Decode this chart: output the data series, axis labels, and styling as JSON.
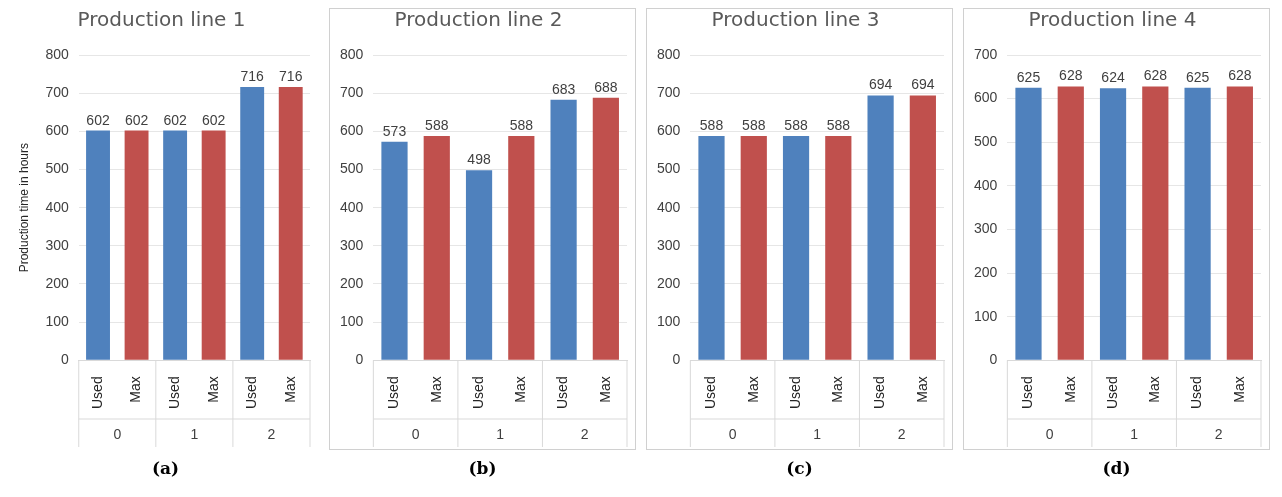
{
  "chart_data": [
    {
      "type": "bar",
      "title": "Production line 1",
      "ylabel": "Production time in hours",
      "categories": [
        "Used",
        "Max",
        "Used",
        "Max",
        "Used",
        "Max"
      ],
      "values": [
        602,
        602,
        602,
        602,
        716,
        716
      ],
      "colors": [
        "#4f81bd",
        "#c0504d",
        "#4f81bd",
        "#c0504d",
        "#4f81bd",
        "#c0504d"
      ],
      "ylim": [
        0,
        800
      ],
      "yticks": [
        0,
        100,
        200,
        300,
        400,
        500,
        600,
        700,
        800
      ],
      "grid": "y",
      "data_labels": true,
      "annotations": [
        "0",
        "1",
        "2",
        "(a)"
      ]
    },
    {
      "type": "bar",
      "title": "Production line 2",
      "categories": [
        "Used",
        "Max",
        "Used",
        "Max",
        "Used",
        "Max"
      ],
      "values": [
        573,
        588,
        498,
        588,
        683,
        688
      ],
      "colors": [
        "#4f81bd",
        "#c0504d",
        "#4f81bd",
        "#c0504d",
        "#4f81bd",
        "#c0504d"
      ],
      "ylim": [
        0,
        800
      ],
      "yticks": [
        0,
        100,
        200,
        300,
        400,
        500,
        600,
        700,
        800
      ],
      "grid": "y",
      "data_labels": true,
      "annotations": [
        "0",
        "1",
        "2",
        "(b)"
      ]
    },
    {
      "type": "bar",
      "title": "Production line 3",
      "categories": [
        "Used",
        "Max",
        "Used",
        "Max",
        "Used",
        "Max"
      ],
      "values": [
        588,
        588,
        588,
        588,
        694,
        694
      ],
      "colors": [
        "#4f81bd",
        "#c0504d",
        "#4f81bd",
        "#c0504d",
        "#4f81bd",
        "#c0504d"
      ],
      "ylim": [
        0,
        800
      ],
      "yticks": [
        0,
        100,
        200,
        300,
        400,
        500,
        600,
        700,
        800
      ],
      "grid": "y",
      "data_labels": true,
      "annotations": [
        "0",
        "1",
        "2",
        "(c)"
      ]
    },
    {
      "type": "bar",
      "title": "Production line 4",
      "categories": [
        "Used",
        "Max",
        "Used",
        "Max",
        "Used",
        "Max"
      ],
      "values": [
        625,
        628,
        624,
        628,
        625,
        628
      ],
      "colors": [
        "#4f81bd",
        "#c0504d",
        "#4f81bd",
        "#c0504d",
        "#4f81bd",
        "#c0504d"
      ],
      "ylim": [
        0,
        700
      ],
      "yticks": [
        0,
        100,
        200,
        300,
        400,
        500,
        600,
        700
      ],
      "grid": "y",
      "data_labels": true,
      "annotations": [
        "0",
        "1",
        "2",
        "(d)"
      ]
    }
  ]
}
